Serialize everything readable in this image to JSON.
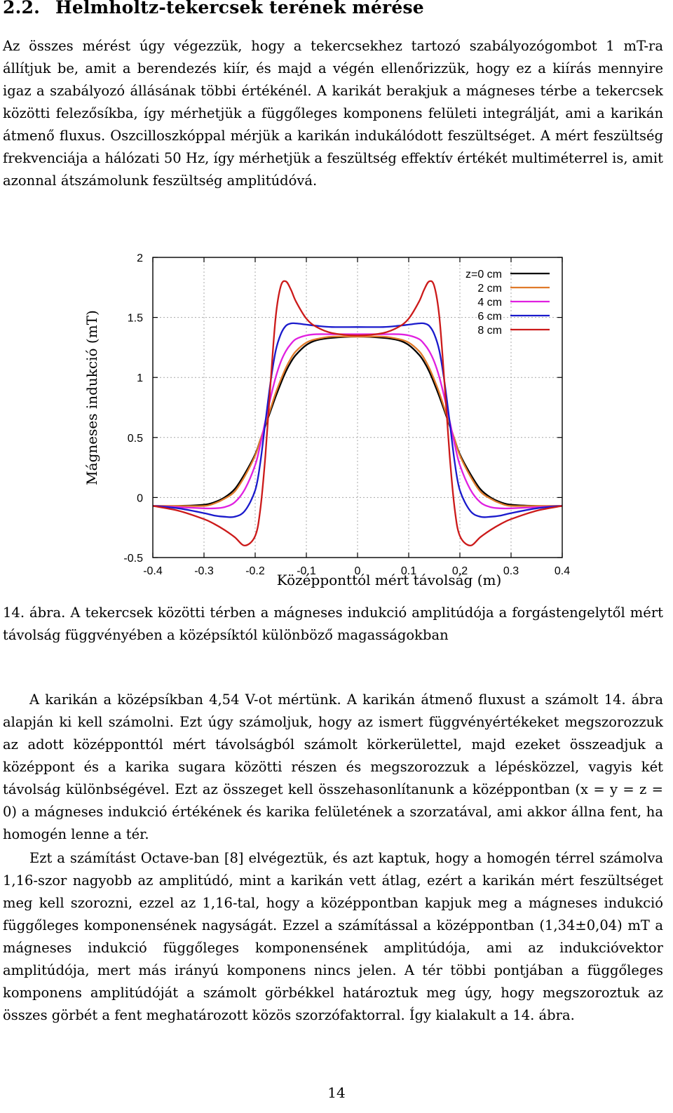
{
  "section": {
    "number": "2.2.",
    "title": "Helmholtz-tekercsek terének mérése"
  },
  "paragraphs": {
    "p1": "Az összes mérést úgy végezzük, hogy a tekercsekhez tartozó szabályozógombot 1 mT-ra állítjuk be, amit a berendezés kiír, és majd a végén ellenőrizzük, hogy ez a kiírás mennyire igaz a szabályozó állásának többi értékénél. A karikát berakjuk a mágneses térbe a tekercsek közötti felezősíkba, így mérhetjük a függőleges komponens felületi integrálját, ami a karikán átmenő fluxus. Oszcilloszkóppal mérjük a karikán indukálódott feszültséget. A mért feszültség frekvenciája a hálózati 50 Hz, így mérhetjük a feszültség effektív értékét multiméterrel is, amit azonnal átszámolunk feszültség amplitúdóvá.",
    "p2": "A karikán a középsíkban 4,54 V-ot mértünk. A karikán átmenő fluxust a számolt 14. ábra alapján ki kell számolni. Ezt úgy számoljuk, hogy az ismert függvényértékeket megszorozzuk az adott középponttól mért távolságból számolt körkerülettel, majd ezeket összeadjuk a középpont és a karika sugara közötti részen és megszorozzuk a lépésközzel, vagyis két távolság különbségével. Ezt az összeget kell összehasonlítanunk a középpontban (x = y = z = 0) a mágneses indukció értékének és karika felületének a szorzatával, ami akkor állna fent, ha homogén lenne a tér.",
    "p3": "Ezt a számítást Octave-ban [8] elvégeztük, és azt kaptuk, hogy a homogén térrel számolva 1,16-szor nagyobb az amplitúdó, mint a karikán vett átlag, ezért a karikán mért feszültséget meg kell szorozni, ezzel az 1,16-tal, hogy a középpontban kapjuk meg a mágneses indukció függőleges komponensének nagyságát. Ezzel a számítással a középpontban (1,34±0,04) mT a mágneses indukció függőleges komponensének amplitúdója, ami az indukcióvektor amplitúdója, mert más irányú komponens nincs jelen. A tér többi pontjában a függőleges komponens amplitúdóját a számolt görbékkel határoztuk meg úgy, hogy megszoroztuk az összes görbét a fent meghatározott közös szorzófaktorral. Így kialakult a 14. ábra."
  },
  "caption": "14. ábra. A tekercsek közötti térben a mágneses indukció amplitúdója a forgástengelytől mért távolság függvényében a középsíktól különböző magasságokban",
  "page_number": "14",
  "chart_data": {
    "type": "line",
    "title": "",
    "xlabel": "Középponttól mért távolság (m)",
    "ylabel": "Mágneses indukció (mT)",
    "xlim": [
      -0.4,
      0.4
    ],
    "ylim": [
      -0.5,
      2
    ],
    "xticks": [
      "-0.4",
      "-0.3",
      "-0.2",
      "-0.1",
      "0",
      "0.1",
      "0.2",
      "0.3",
      "0.4"
    ],
    "yticks": [
      "-0.5",
      "0",
      "0.5",
      "1",
      "1.5",
      "2"
    ],
    "grid": true,
    "legend_position": "top-right",
    "x": [
      -0.4,
      -0.35,
      -0.3,
      -0.28,
      -0.26,
      -0.24,
      -0.22,
      -0.2,
      -0.19,
      -0.18,
      -0.17,
      -0.16,
      -0.15,
      -0.14,
      -0.13,
      -0.12,
      -0.1,
      -0.08,
      -0.05,
      0,
      0.05,
      0.08,
      0.1,
      0.12,
      0.13,
      0.14,
      0.15,
      0.16,
      0.17,
      0.18,
      0.19,
      0.2,
      0.22,
      0.24,
      0.26,
      0.28,
      0.3,
      0.35,
      0.4
    ],
    "series": [
      {
        "name": "z=0 cm",
        "color": "#000000",
        "values": [
          -0.07,
          -0.07,
          -0.06,
          -0.04,
          0.0,
          0.07,
          0.2,
          0.36,
          0.48,
          0.6,
          0.72,
          0.84,
          0.95,
          1.05,
          1.13,
          1.19,
          1.27,
          1.31,
          1.33,
          1.34,
          1.33,
          1.31,
          1.27,
          1.19,
          1.13,
          1.05,
          0.95,
          0.84,
          0.72,
          0.6,
          0.48,
          0.36,
          0.2,
          0.07,
          0.0,
          -0.04,
          -0.06,
          -0.07,
          -0.07
        ]
      },
      {
        "name": "2 cm",
        "color": "#e07a2a",
        "values": [
          -0.07,
          -0.07,
          -0.07,
          -0.05,
          -0.01,
          0.05,
          0.18,
          0.35,
          0.48,
          0.61,
          0.74,
          0.87,
          0.98,
          1.08,
          1.16,
          1.22,
          1.29,
          1.32,
          1.34,
          1.34,
          1.34,
          1.32,
          1.29,
          1.22,
          1.16,
          1.08,
          0.98,
          0.87,
          0.74,
          0.61,
          0.48,
          0.35,
          0.18,
          0.05,
          -0.01,
          -0.05,
          -0.07,
          -0.07,
          -0.07
        ]
      },
      {
        "name": "4 cm",
        "color": "#e020e0",
        "values": [
          -0.07,
          -0.08,
          -0.09,
          -0.09,
          -0.08,
          -0.04,
          0.07,
          0.27,
          0.44,
          0.64,
          0.83,
          1.0,
          1.13,
          1.22,
          1.28,
          1.32,
          1.35,
          1.36,
          1.36,
          1.36,
          1.36,
          1.36,
          1.35,
          1.32,
          1.28,
          1.22,
          1.13,
          1.0,
          0.83,
          0.64,
          0.44,
          0.27,
          0.07,
          -0.04,
          -0.08,
          -0.09,
          -0.09,
          -0.08,
          -0.07
        ]
      },
      {
        "name": "6 cm",
        "color": "#1a1acc",
        "values": [
          -0.07,
          -0.09,
          -0.13,
          -0.15,
          -0.16,
          -0.16,
          -0.11,
          0.06,
          0.29,
          0.63,
          0.96,
          1.22,
          1.36,
          1.43,
          1.45,
          1.45,
          1.44,
          1.43,
          1.42,
          1.42,
          1.42,
          1.43,
          1.44,
          1.45,
          1.45,
          1.43,
          1.36,
          1.22,
          0.96,
          0.63,
          0.29,
          0.06,
          -0.11,
          -0.16,
          -0.16,
          -0.15,
          -0.13,
          -0.09,
          -0.07
        ]
      },
      {
        "name": "8 cm",
        "color": "#cc1a1a",
        "values": [
          -0.07,
          -0.11,
          -0.18,
          -0.22,
          -0.27,
          -0.33,
          -0.4,
          -0.32,
          -0.1,
          0.35,
          0.95,
          1.5,
          1.76,
          1.8,
          1.73,
          1.63,
          1.49,
          1.42,
          1.37,
          1.35,
          1.37,
          1.42,
          1.49,
          1.63,
          1.73,
          1.8,
          1.76,
          1.5,
          0.95,
          0.35,
          -0.1,
          -0.32,
          -0.4,
          -0.33,
          -0.27,
          -0.22,
          -0.18,
          -0.11,
          -0.07
        ]
      }
    ]
  }
}
